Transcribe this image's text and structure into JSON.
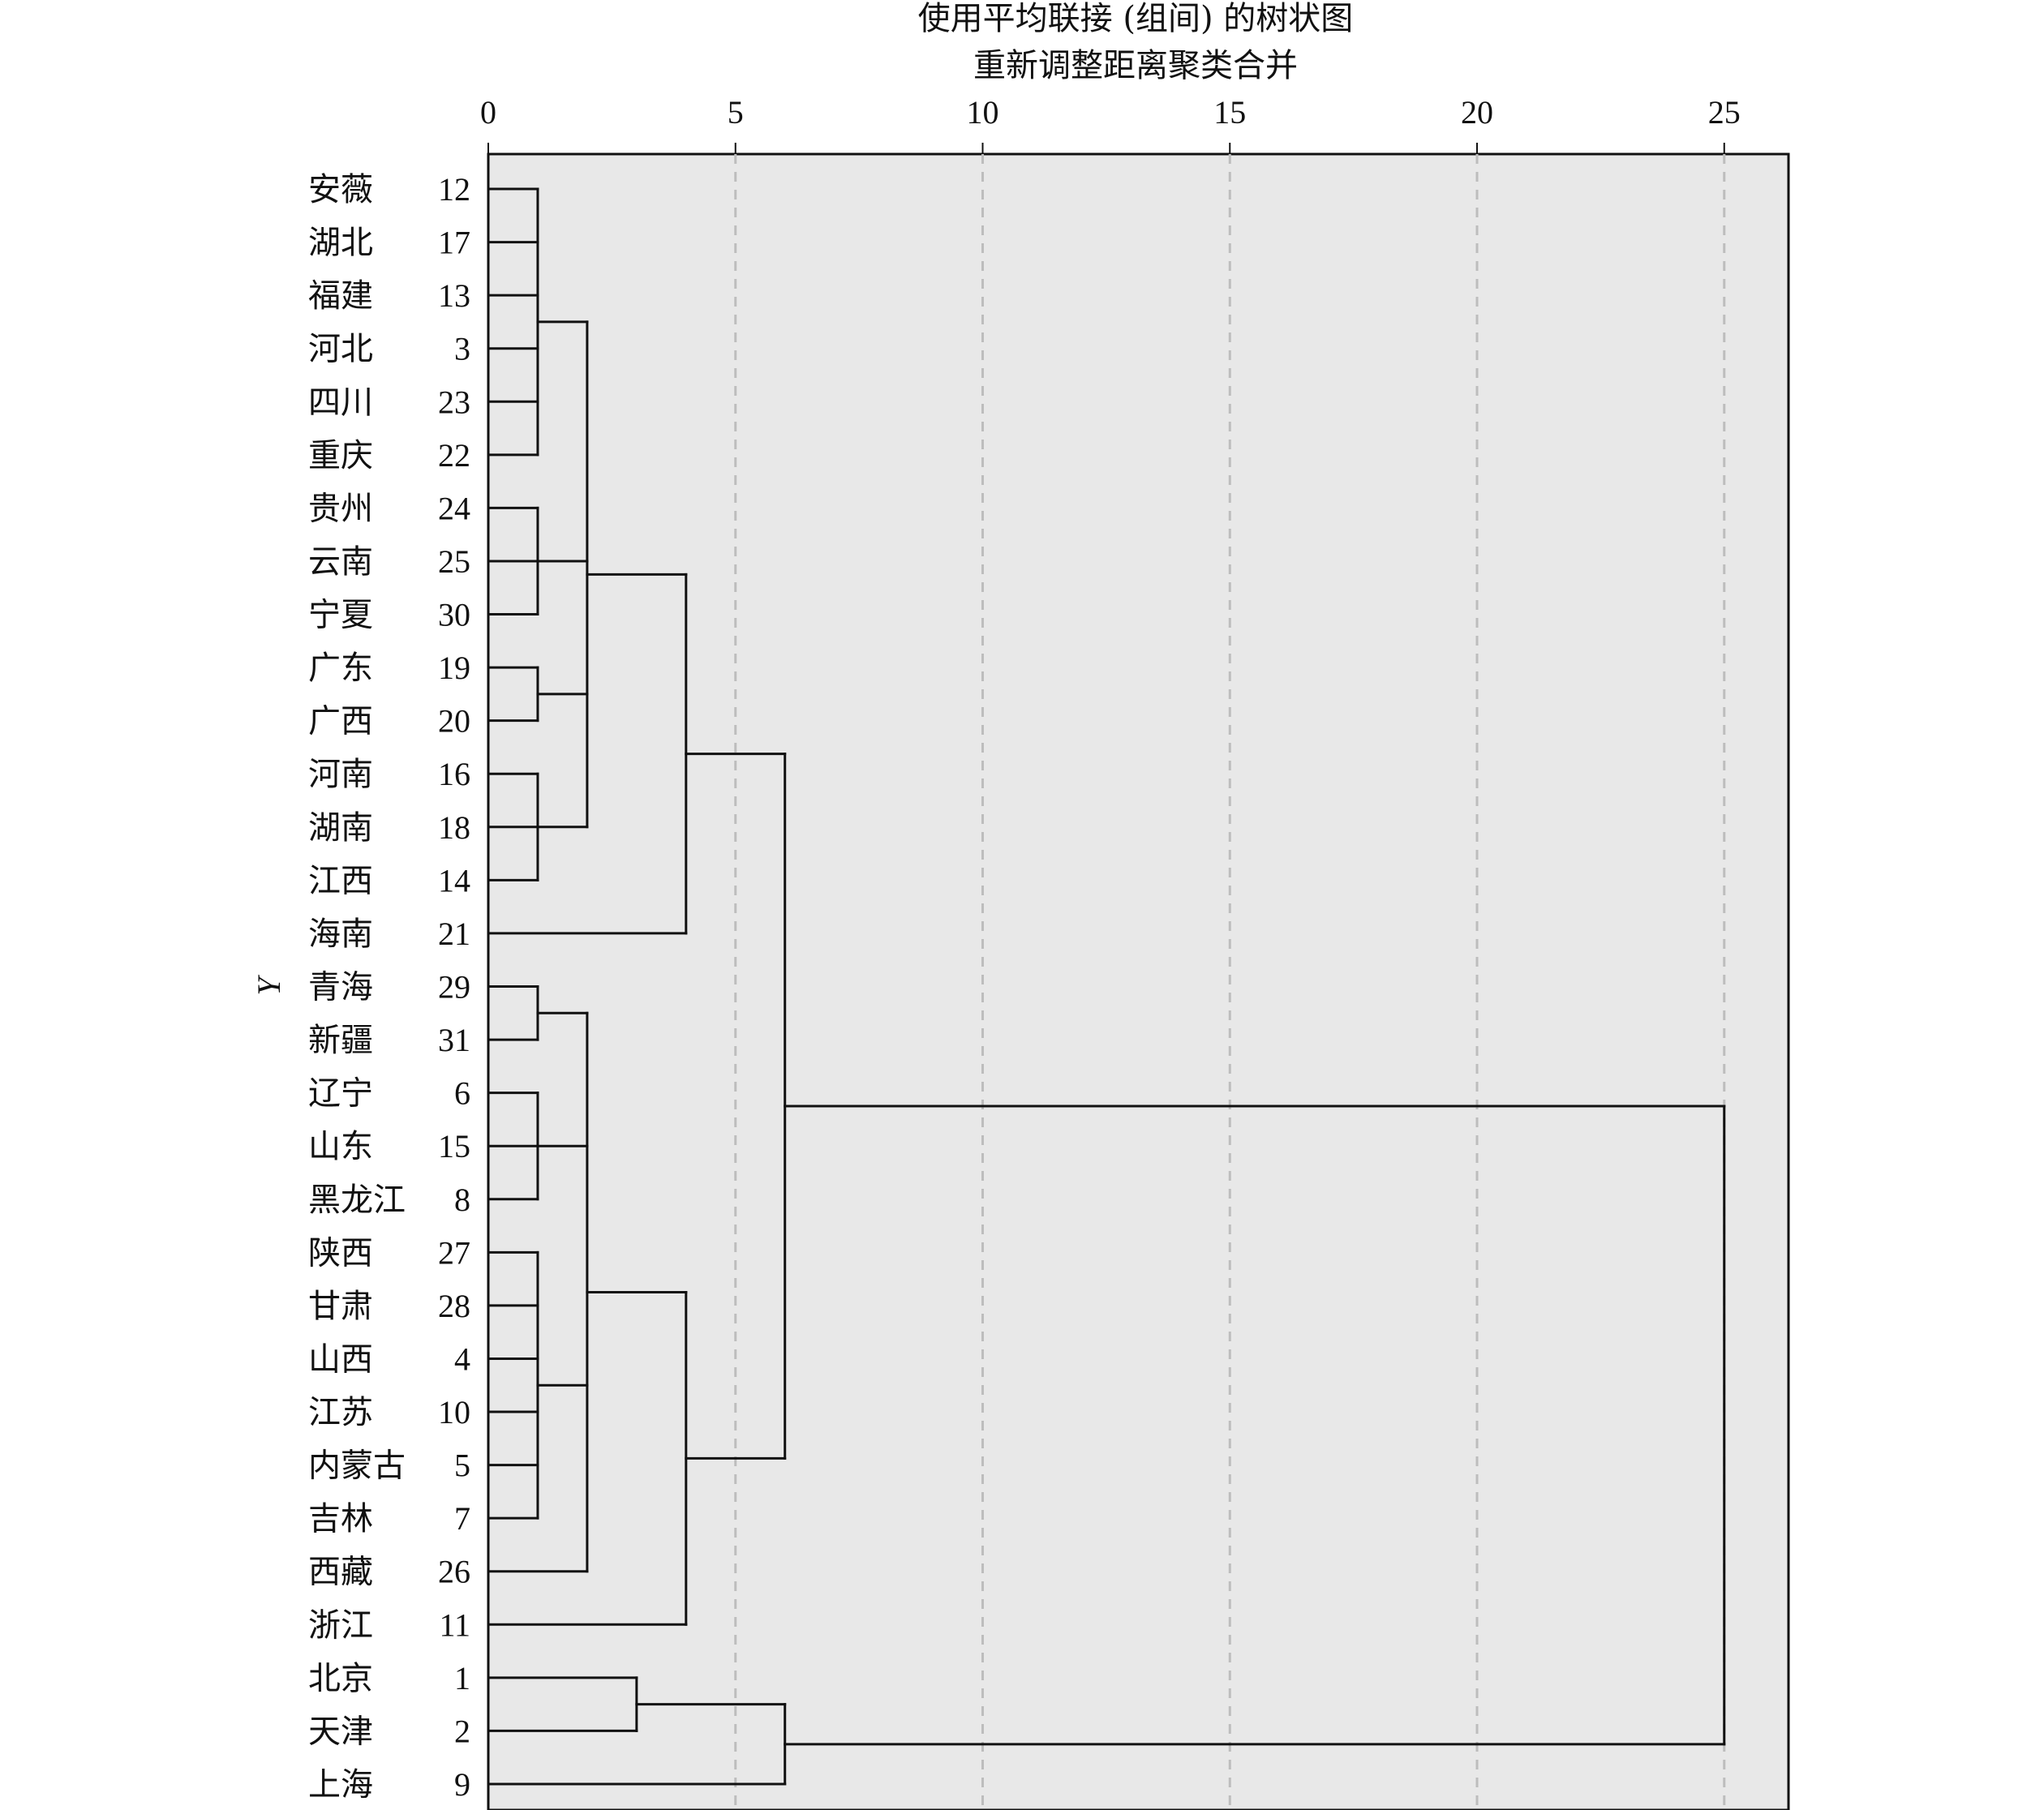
{
  "chart_data": {
    "type": "dendrogram",
    "title": "使用平均联接 (组间) 的树状图",
    "subtitle": "重新调整距离聚类合并",
    "ylabel": "Y",
    "xlim": [
      0,
      26.3
    ],
    "x_ticks": [
      0,
      5,
      10,
      15,
      20,
      25
    ],
    "tick_labels": [
      "0",
      "5",
      "10",
      "15",
      "20",
      "25"
    ],
    "grid": "vertical-dashed",
    "colors": {
      "plot_background": "#e8e8e8",
      "line": "#111111",
      "grid": "#bdbdbd"
    },
    "leaves": [
      {
        "name": "安薇",
        "id": "12"
      },
      {
        "name": "湖北",
        "id": "17"
      },
      {
        "name": "福建",
        "id": "13"
      },
      {
        "name": "河北",
        "id": "3"
      },
      {
        "name": "四川",
        "id": "23"
      },
      {
        "name": "重庆",
        "id": "22"
      },
      {
        "name": "贵州",
        "id": "24"
      },
      {
        "name": "云南",
        "id": "25"
      },
      {
        "name": "宁夏",
        "id": "30"
      },
      {
        "name": "广东",
        "id": "19"
      },
      {
        "name": "广西",
        "id": "20"
      },
      {
        "name": "河南",
        "id": "16"
      },
      {
        "name": "湖南",
        "id": "18"
      },
      {
        "name": "江西",
        "id": "14"
      },
      {
        "name": "海南",
        "id": "21"
      },
      {
        "name": "青海",
        "id": "29"
      },
      {
        "name": "新疆",
        "id": "31"
      },
      {
        "name": "辽宁",
        "id": "6"
      },
      {
        "name": "山东",
        "id": "15"
      },
      {
        "name": "黑龙江",
        "id": "8"
      },
      {
        "name": "陕西",
        "id": "27"
      },
      {
        "name": "甘肃",
        "id": "28"
      },
      {
        "name": "山西",
        "id": "4"
      },
      {
        "name": "江苏",
        "id": "10"
      },
      {
        "name": "内蒙古",
        "id": "5"
      },
      {
        "name": "吉林",
        "id": "7"
      },
      {
        "name": "西藏",
        "id": "26"
      },
      {
        "name": "浙江",
        "id": "11"
      },
      {
        "name": "北京",
        "id": "1"
      },
      {
        "name": "天津",
        "id": "2"
      },
      {
        "name": "上海",
        "id": "9"
      }
    ],
    "merges": [
      {
        "height": 1,
        "children": [
          0,
          1,
          2,
          3,
          4,
          5
        ]
      },
      {
        "height": 1,
        "children": [
          6,
          7,
          8
        ]
      },
      {
        "height": 1,
        "children": [
          9,
          10
        ]
      },
      {
        "height": 1,
        "children": [
          11,
          12,
          13
        ]
      },
      {
        "height": 2,
        "children": [
          31,
          32,
          33,
          34
        ]
      },
      {
        "height": 4,
        "children": [
          35,
          14
        ]
      },
      {
        "height": 1,
        "children": [
          15,
          16
        ]
      },
      {
        "height": 1,
        "children": [
          17,
          18,
          19
        ]
      },
      {
        "height": 1,
        "children": [
          20,
          21,
          22,
          23,
          24,
          25
        ]
      },
      {
        "height": 2,
        "children": [
          37,
          38,
          39,
          26
        ]
      },
      {
        "height": 4,
        "children": [
          40,
          27
        ]
      },
      {
        "height": 6,
        "children": [
          36,
          41
        ]
      },
      {
        "height": 3,
        "children": [
          28,
          29
        ]
      },
      {
        "height": 6,
        "children": [
          43,
          30
        ]
      },
      {
        "height": 25,
        "children": [
          42,
          44
        ]
      }
    ]
  }
}
